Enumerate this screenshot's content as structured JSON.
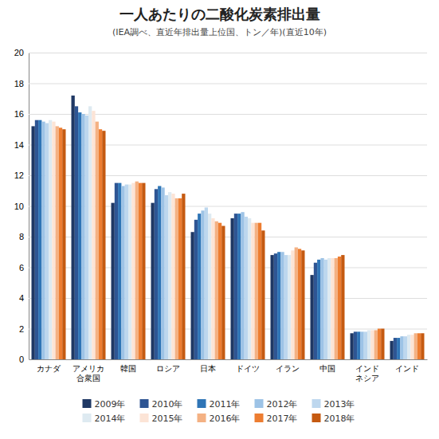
{
  "chart_data": {
    "type": "bar",
    "title": "一人あたりの二酸化炭素排出量",
    "subtitle": "(IEA調べ、直近年排出量上位国、トン／年)(直近10年)",
    "categories": [
      "カナダ",
      "アメリカ\n合衆国",
      "韓国",
      "ロシア",
      "日本",
      "ドイツ",
      "イラン",
      "中国",
      "インド\nネシア",
      "インド"
    ],
    "series": [
      {
        "name": "2009年",
        "color": "#1F3864",
        "values": [
          15.2,
          17.2,
          10.2,
          10.2,
          8.3,
          9.2,
          6.8,
          5.5,
          1.7,
          1.2
        ]
      },
      {
        "name": "2010年",
        "color": "#2E5593",
        "values": [
          15.6,
          16.5,
          11.5,
          11.1,
          9.1,
          9.5,
          6.9,
          6.3,
          1.8,
          1.4
        ]
      },
      {
        "name": "2011年",
        "color": "#2F75B6",
        "values": [
          15.6,
          16.1,
          11.5,
          11.3,
          9.5,
          9.5,
          7.0,
          6.5,
          1.8,
          1.4
        ]
      },
      {
        "name": "2012年",
        "color": "#9DC3E6",
        "values": [
          15.5,
          16.0,
          11.3,
          11.2,
          9.7,
          9.6,
          7.0,
          6.6,
          1.8,
          1.5
        ]
      },
      {
        "name": "2013年",
        "color": "#BDD7EE",
        "values": [
          15.4,
          15.9,
          11.4,
          10.7,
          9.9,
          9.3,
          6.8,
          6.5,
          1.8,
          1.5
        ]
      },
      {
        "name": "2014年",
        "color": "#DEEAF1",
        "values": [
          15.6,
          16.5,
          11.4,
          10.9,
          9.5,
          9.2,
          6.8,
          6.6,
          1.9,
          1.6
        ]
      },
      {
        "name": "2015年",
        "color": "#FCE4D6",
        "values": [
          15.5,
          16.2,
          11.5,
          10.8,
          9.2,
          8.9,
          7.1,
          6.6,
          1.9,
          1.6
        ]
      },
      {
        "name": "2016年",
        "color": "#F4B183",
        "values": [
          15.2,
          15.5,
          11.6,
          10.5,
          9.0,
          8.9,
          7.3,
          6.6,
          1.9,
          1.7
        ]
      },
      {
        "name": "2017年",
        "color": "#ED7D31",
        "values": [
          15.1,
          15.0,
          11.5,
          10.5,
          8.9,
          8.9,
          7.2,
          6.7,
          2.0,
          1.7
        ]
      },
      {
        "name": "2018年",
        "color": "#C55A11",
        "values": [
          15.0,
          14.9,
          11.5,
          10.8,
          8.7,
          8.4,
          7.1,
          6.8,
          2.0,
          1.7
        ]
      }
    ],
    "ylim": [
      0,
      20
    ],
    "yticks": [
      0,
      2,
      4,
      6,
      8,
      10,
      12,
      14,
      16,
      18,
      20
    ],
    "grid": true,
    "legend": "bottom"
  }
}
